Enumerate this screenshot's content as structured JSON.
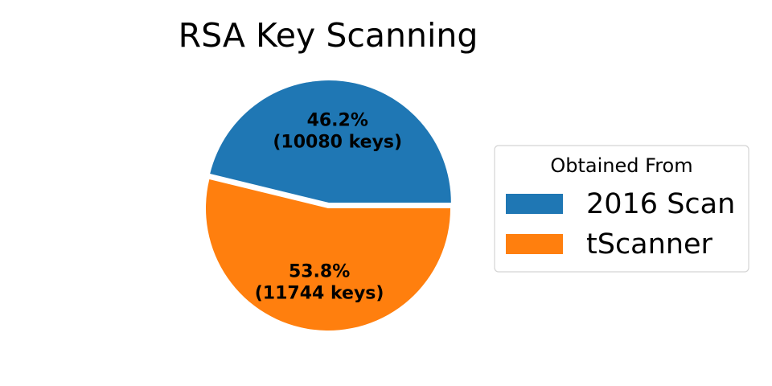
{
  "chart_data": {
    "type": "pie",
    "title": "RSA Key Scanning",
    "slices": [
      {
        "name": "2016 Scan",
        "value": 10080,
        "percent_label": "46.2%",
        "count_label": "(10080 keys)",
        "color": "#1f77b4",
        "exploded": true
      },
      {
        "name": "tScanner",
        "value": 11744,
        "percent_label": "53.8%",
        "count_label": "(11744 keys)",
        "color": "#ff7f0e",
        "exploded": false
      }
    ],
    "legend": {
      "title": "Obtained From",
      "placement": "right"
    }
  }
}
